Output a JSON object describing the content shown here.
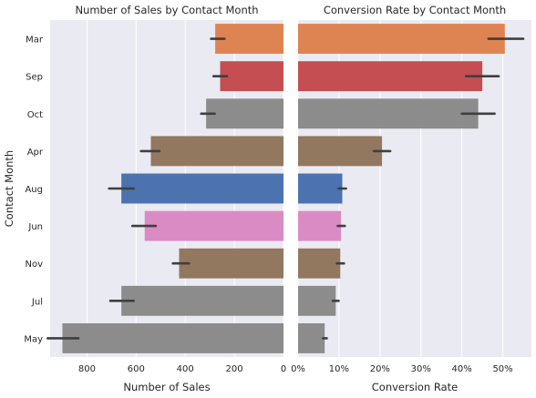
{
  "chart_data": [
    {
      "type": "bar",
      "orientation": "horizontal",
      "x_axis_inverted": true,
      "title": "Number of Sales by Contact Month",
      "xlabel": "Number of Sales",
      "ylabel": "Contact Month",
      "xlim": [
        950,
        0
      ],
      "xticks": [
        800,
        600,
        400,
        200,
        0
      ],
      "xtick_labels": [
        "800",
        "600",
        "400",
        "200",
        "0"
      ],
      "grid": true,
      "categories": [
        "Mar",
        "Sep",
        "Oct",
        "Apr",
        "Aug",
        "Jun",
        "Nov",
        "Jul",
        "May"
      ],
      "values": [
        278,
        258,
        315,
        540,
        660,
        565,
        425,
        660,
        900
      ],
      "error_low": [
        240,
        230,
        280,
        505,
        610,
        520,
        385,
        610,
        835
      ],
      "error_high": [
        295,
        285,
        335,
        580,
        710,
        615,
        450,
        705,
        960
      ],
      "colors": [
        "#dd8452",
        "#c44e52",
        "#8c8c8c",
        "#937860",
        "#4c72b0",
        "#da8bc3",
        "#937860",
        "#8c8c8c",
        "#8c8c8c"
      ]
    },
    {
      "type": "bar",
      "orientation": "horizontal",
      "title": "Conversion Rate by Contact Month",
      "xlabel": "Conversion Rate",
      "ylabel": "",
      "xlim": [
        0,
        0.57
      ],
      "xticks": [
        0,
        0.1,
        0.2,
        0.3,
        0.4,
        0.5
      ],
      "xtick_labels": [
        "0%",
        "10%",
        "20%",
        "30%",
        "40%",
        "50%"
      ],
      "grid": true,
      "categories": [
        "Mar",
        "Sep",
        "Oct",
        "Apr",
        "Aug",
        "Jun",
        "Nov",
        "Jul",
        "May"
      ],
      "values": [
        0.505,
        0.45,
        0.44,
        0.205,
        0.108,
        0.105,
        0.103,
        0.092,
        0.065
      ],
      "error_low": [
        0.465,
        0.41,
        0.4,
        0.185,
        0.099,
        0.097,
        0.095,
        0.085,
        0.061
      ],
      "error_high": [
        0.55,
        0.49,
        0.48,
        0.225,
        0.117,
        0.114,
        0.112,
        0.099,
        0.07
      ],
      "colors": [
        "#dd8452",
        "#c44e52",
        "#8c8c8c",
        "#937860",
        "#4c72b0",
        "#da8bc3",
        "#937860",
        "#8c8c8c",
        "#8c8c8c"
      ]
    }
  ],
  "style": {
    "axes_background": "#eaeaf2",
    "grid_color": "#ffffff",
    "error_bar_color": "#3f3f3f"
  }
}
